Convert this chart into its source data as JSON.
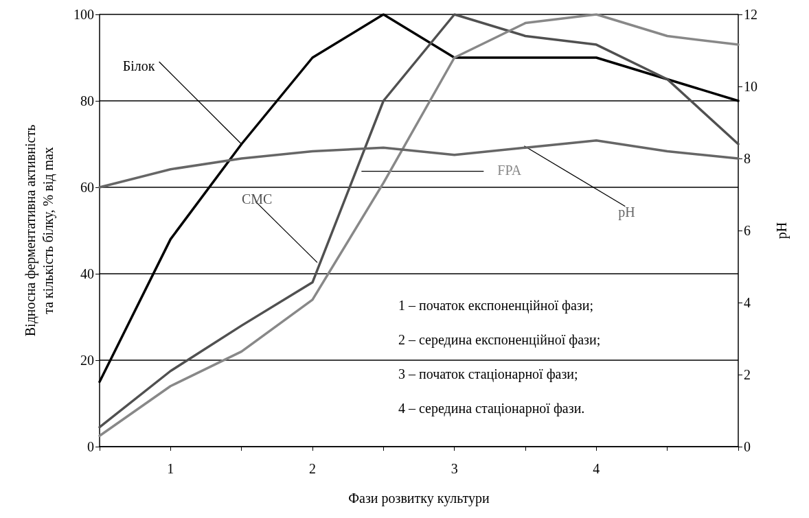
{
  "chart_data": {
    "type": "line",
    "xlabel": "Фази розвитку культури",
    "ylabel": "Відносна ферментативна активність\nта кількість білку, % від max",
    "y2label": "pH",
    "x": [
      0.5,
      1,
      1.5,
      2,
      2.5,
      3,
      3.5,
      4,
      4.5,
      5
    ],
    "xlim": [
      0.5,
      5
    ],
    "xticks": [
      {
        "value": 0.5,
        "label": null
      },
      1,
      {
        "value": 1.5,
        "label": null
      },
      2,
      {
        "value": 2.5,
        "label": null
      },
      3,
      {
        "value": 3.5,
        "label": null
      },
      4,
      {
        "value": 4.5,
        "label": null
      },
      {
        "value": 5,
        "label": null
      }
    ],
    "ylim": [
      0,
      100
    ],
    "yticks": [
      0,
      20,
      40,
      60,
      80,
      100
    ],
    "y2lim": [
      0,
      12
    ],
    "y2ticks": [
      0,
      2,
      4,
      6,
      8,
      10,
      12
    ],
    "grid": "y",
    "legend": false,
    "marker": "none",
    "line_style": "solid",
    "series": [
      {
        "name": "Білок",
        "color": "#000000",
        "values": [
          15,
          48,
          70,
          90,
          100,
          90,
          90,
          90,
          85,
          80
        ]
      },
      {
        "name": "CMC",
        "color": "#505050",
        "values": [
          4.5,
          17.5,
          28,
          38,
          80,
          100,
          95,
          93,
          85,
          70
        ]
      },
      {
        "name": "FPA",
        "color": "#888888",
        "values": [
          2.5,
          14,
          22,
          34,
          61,
          90,
          98,
          100,
          95,
          93
        ]
      },
      {
        "name": "pH",
        "color": "#666666",
        "axis": "y2",
        "values": [
          7.2,
          7.7,
          8.0,
          8.2,
          8.3,
          8.1,
          8.3,
          8.5,
          8.2,
          8.0
        ]
      }
    ],
    "annotations": [
      "1 – початок експоненційної фази;",
      "2 – середина експоненційної фази;",
      "3 – початок стаціонарної фази;",
      "4 – середина стаціонарної фази."
    ]
  }
}
